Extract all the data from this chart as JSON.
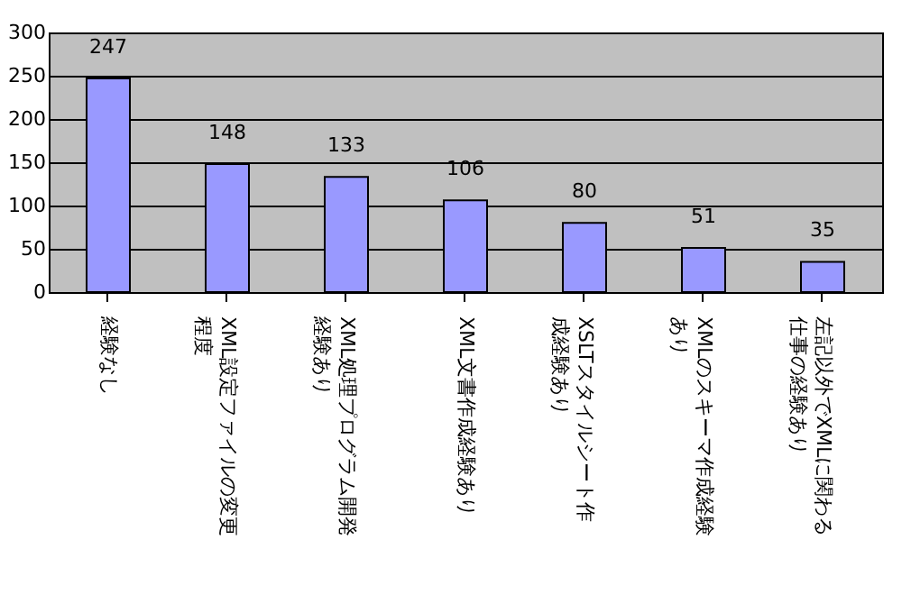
{
  "chart_data": {
    "type": "bar",
    "categories": [
      "経験なし",
      "XML設定ファイルの変更程度",
      "XML処理プログラム開発経験あり",
      "XML文書作成経験あり",
      "XSLTスタイルシート作成経験あり",
      "XMLのスキーマ作成経験あり",
      "左記以外でXMLに関わる仕事の経験あり"
    ],
    "values": [
      247,
      148,
      133,
      106,
      80,
      51,
      35
    ],
    "color": "#9999ff",
    "ylim": [
      0,
      300
    ],
    "yticks": [
      0,
      50,
      100,
      150,
      200,
      250,
      300
    ],
    "grid": "y",
    "data_labels": true
  }
}
